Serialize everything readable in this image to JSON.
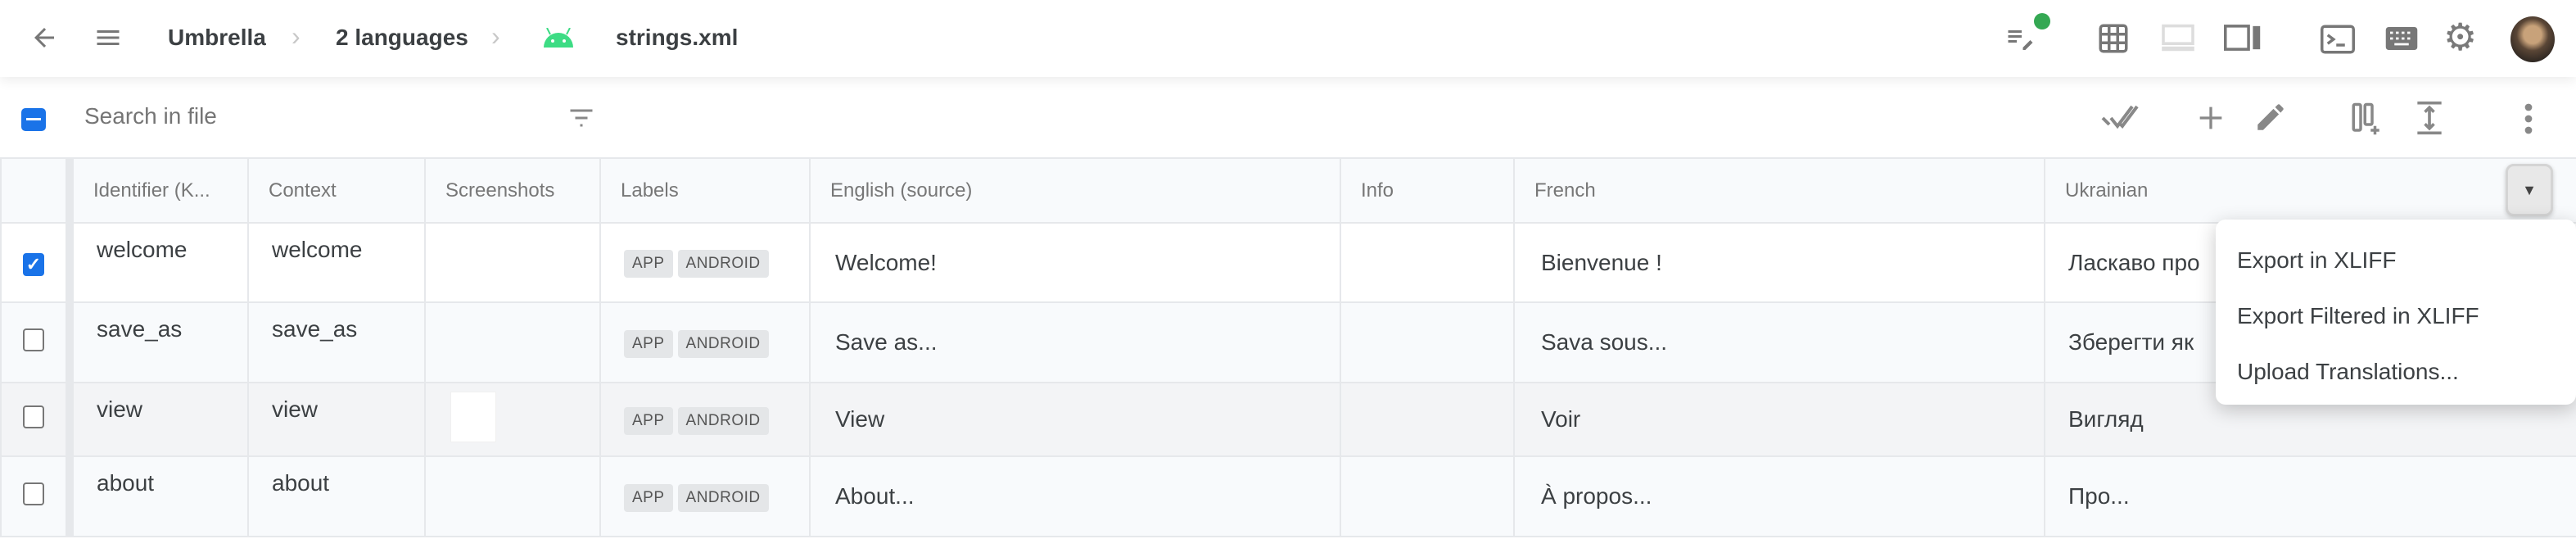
{
  "header": {
    "breadcrumbs": [
      "Umbrella",
      "2 languages",
      "strings.xml"
    ],
    "icons": [
      "back-arrow-icon",
      "menu-icon",
      "android-icon",
      "notes-edit-icon",
      "grid-icon",
      "bottom-panel-icon",
      "side-panel-icon",
      "terminal-icon",
      "keyboard-icon",
      "gear-icon",
      "avatar"
    ],
    "status_dot_color": "#34a853"
  },
  "toolbar": {
    "search_placeholder": "Search in file",
    "icons": [
      "filter-icon",
      "mark-done-icon",
      "add-icon",
      "edit-icon",
      "add-column-icon",
      "expand-rows-icon",
      "more-icon"
    ]
  },
  "table": {
    "columns": [
      "Identifier (K...",
      "Context",
      "Screenshots",
      "Labels",
      "English (source)",
      "Info",
      "French",
      "Ukrainian"
    ],
    "rows": [
      {
        "checked": true,
        "id": "welcome",
        "context": "welcome",
        "labels": [
          "APP",
          "ANDROID"
        ],
        "english": "Welcome!",
        "info": "",
        "french": "Bienvenue !",
        "ukrainian": "Ласкаво про"
      },
      {
        "checked": false,
        "id": "save_as",
        "context": "save_as",
        "labels": [
          "APP",
          "ANDROID"
        ],
        "english": "Save as...",
        "info": "",
        "french": "Sava sous...",
        "ukrainian": "Зберегти як"
      },
      {
        "checked": false,
        "id": "view",
        "context": "view",
        "labels": [
          "APP",
          "ANDROID"
        ],
        "english": "View",
        "info": "",
        "french": "Voir",
        "ukrainian": "Вигляд"
      },
      {
        "checked": false,
        "id": "about",
        "context": "about",
        "labels": [
          "APP",
          "ANDROID"
        ],
        "english": "About...",
        "info": "",
        "french": "À propos...",
        "ukrainian": "Про..."
      }
    ]
  },
  "column_menu": {
    "items": [
      "Export in XLIFF",
      "Export Filtered in XLIFF",
      "Upload Translations..."
    ]
  },
  "colors": {
    "accent": "#1a73e8",
    "android": "#3ddc84"
  }
}
